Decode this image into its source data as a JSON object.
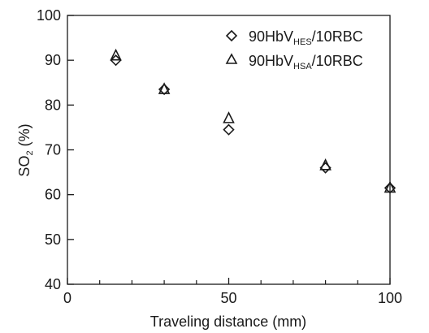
{
  "chart_data": {
    "type": "scatter",
    "xlabel": "Traveling distance (mm)",
    "ylabel": {
      "main": "SO",
      "sub": "2",
      "suffix": " (%)"
    },
    "xlim": [
      0,
      100
    ],
    "ylim": [
      40,
      100
    ],
    "x_ticks": [
      0,
      50,
      100
    ],
    "x_minor_ticks": [
      10,
      20,
      30,
      40,
      60,
      70,
      80,
      90
    ],
    "y_ticks": [
      40,
      50,
      60,
      70,
      80,
      90,
      100
    ],
    "grid": false,
    "legend_position": "top-right",
    "series": [
      {
        "name": "90HbV_HES/10RBC",
        "legend": {
          "prefix": "90HbV",
          "sub": "HES",
          "suffix": "/10RBC"
        },
        "marker": "diamond",
        "points": [
          {
            "x": 15,
            "y": 90
          },
          {
            "x": 30,
            "y": 83.5
          },
          {
            "x": 50,
            "y": 74.5
          },
          {
            "x": 80,
            "y": 66
          },
          {
            "x": 100,
            "y": 61.5
          }
        ]
      },
      {
        "name": "90HbV_HSA/10RBC",
        "legend": {
          "prefix": "90HbV",
          "sub": "HSA",
          "suffix": "/10RBC"
        },
        "marker": "triangle",
        "points": [
          {
            "x": 15,
            "y": 91
          },
          {
            "x": 30,
            "y": 83.5
          },
          {
            "x": 50,
            "y": 77
          },
          {
            "x": 80,
            "y": 66.5
          },
          {
            "x": 100,
            "y": 61.5
          }
        ]
      }
    ]
  }
}
